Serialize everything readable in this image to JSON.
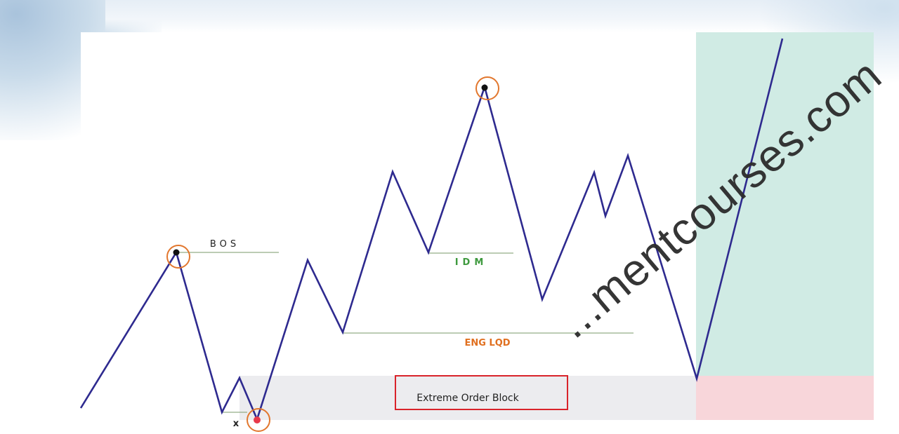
{
  "labels": {
    "bos": "BOS",
    "idm": "IDM",
    "eng_lqd": "ENG LQD",
    "extreme_ob": "Extreme Order Block",
    "x_mark": "x"
  },
  "watermark": "...mentcourses.com",
  "colors": {
    "price_line": "#2e2a8f",
    "bos_line": "#7a9a6a",
    "idm_text": "#3f9a3f",
    "eng_lqd_text": "#e07020",
    "circle": "#e2772e",
    "ob_zone": "#ececef",
    "ob_box_border": "#d9232a",
    "target_zone": "#d0ebe4",
    "stop_zone": "#f8d6da",
    "dot_black": "#111111",
    "dot_red": "#e8394b"
  }
}
